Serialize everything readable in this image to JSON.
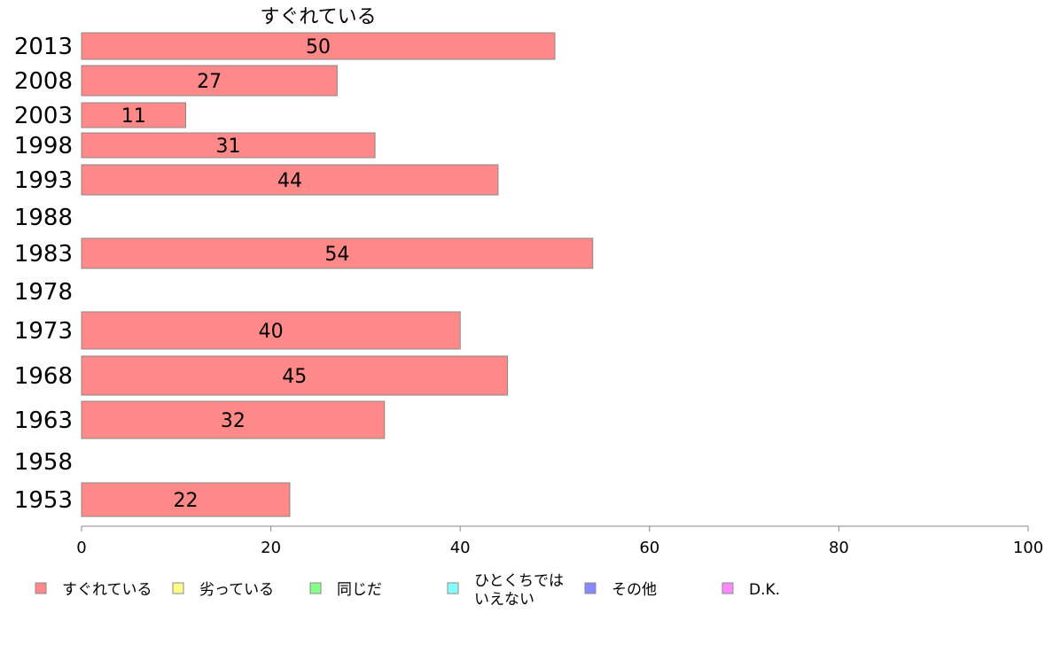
{
  "chart_data": {
    "type": "bar",
    "orientation": "horizontal",
    "title": "すぐれている",
    "categories": [
      "2013",
      "2008",
      "2003",
      "1998",
      "1993",
      "1988",
      "1983",
      "1978",
      "1973",
      "1968",
      "1963",
      "1958",
      "1953"
    ],
    "series": [
      {
        "name": "すぐれている",
        "values": [
          50,
          27,
          11,
          31,
          44,
          null,
          54,
          null,
          40,
          45,
          32,
          null,
          22
        ]
      }
    ],
    "xlim": [
      0,
      100
    ],
    "xticks": [
      0,
      20,
      40,
      60,
      80,
      100
    ],
    "grid": false,
    "legend_position": "bottom",
    "legend": [
      {
        "label": "すぐれている",
        "color": "#ff8888"
      },
      {
        "label": "劣っている",
        "color": "#ffff88"
      },
      {
        "label": "同じだ",
        "color": "#88ff88"
      },
      {
        "label": [
          "ひとくちでは",
          "いえない"
        ],
        "color": "#88ffff"
      },
      {
        "label": "その他",
        "color": "#8888ff"
      },
      {
        "label": "D.K.",
        "color": "#ff88ff"
      }
    ],
    "colors": {
      "bar": "#ff8888",
      "bar_stroke": "#888888",
      "axis": "#888888"
    }
  }
}
